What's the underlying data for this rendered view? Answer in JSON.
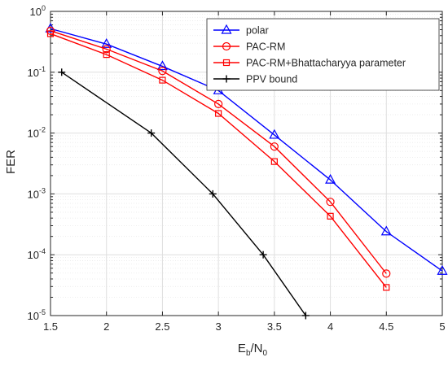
{
  "chart_data": {
    "type": "line",
    "title": "",
    "xlabel": {
      "main": "E",
      "sub1": "b",
      "sep": "/N",
      "sub2": "0"
    },
    "ylabel": "FER",
    "xlim": [
      1.5,
      5
    ],
    "ylim": [
      1e-05,
      1
    ],
    "yscale": "log",
    "grid": true,
    "legend_position": "top-right",
    "x_ticks": [
      "1.5",
      "2",
      "2.5",
      "3",
      "3.5",
      "4",
      "4.5",
      "5"
    ],
    "y_ticks": [
      {
        "base": "10",
        "exp": "0"
      },
      {
        "base": "10",
        "exp": "-1"
      },
      {
        "base": "10",
        "exp": "-2"
      },
      {
        "base": "10",
        "exp": "-3"
      },
      {
        "base": "10",
        "exp": "-4"
      },
      {
        "base": "10",
        "exp": "-5"
      }
    ],
    "series": [
      {
        "name": "polar",
        "color": "#0000ff",
        "marker": "triangle",
        "x": [
          1.5,
          2,
          2.5,
          3,
          3.5,
          4,
          4.5,
          5
        ],
        "y": [
          0.52,
          0.29,
          0.125,
          0.05,
          0.0093,
          0.0017,
          0.00024,
          5.4e-05
        ]
      },
      {
        "name": "PAC-RM",
        "color": "#ff0000",
        "marker": "circle",
        "x": [
          1.5,
          2,
          2.5,
          3,
          3.5,
          4,
          4.5
        ],
        "y": [
          0.48,
          0.24,
          0.105,
          0.03,
          0.006,
          0.00074,
          4.9e-05
        ]
      },
      {
        "name": "PAC-RM+Bhattacharyya parameter",
        "color": "#ff0000",
        "marker": "square",
        "x": [
          1.5,
          2,
          2.5,
          3,
          3.5,
          4,
          4.5
        ],
        "y": [
          0.43,
          0.195,
          0.074,
          0.021,
          0.0034,
          0.00043,
          2.9e-05
        ]
      },
      {
        "name": "PPV bound",
        "color": "#000000",
        "marker": "plus",
        "x": [
          1.6,
          2.4,
          2.95,
          3.4,
          3.78
        ],
        "y": [
          0.1,
          0.01,
          0.001,
          0.0001,
          1e-05
        ]
      }
    ]
  }
}
